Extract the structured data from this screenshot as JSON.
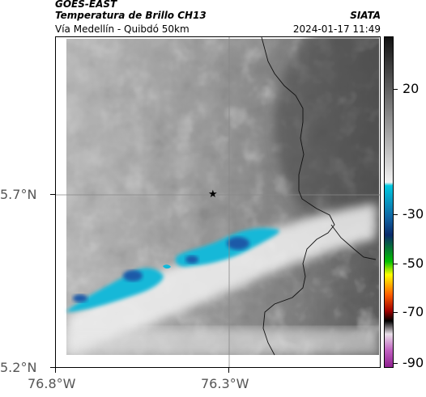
{
  "header": {
    "satellite": "GOES-EAST",
    "product": "Temperatura de Brillo CH13",
    "location": "Vía Medellín - Quibdó 50km",
    "organization": "SIATA",
    "timestamp": "2024-01-17 11:49"
  },
  "axes": {
    "y_ticks": [
      "5.7°N",
      "5.2°N"
    ],
    "x_ticks": [
      "76.8°W",
      "76.3°W"
    ]
  },
  "colorbar": {
    "ticks": [
      "20",
      "-30",
      "-50",
      "-70",
      "-90"
    ],
    "colors": [
      "#111111",
      "#7f7f7f",
      "#f2f2f2",
      "#00c8e0",
      "#1060a0",
      "#0a2a6a",
      "#00c000",
      "#ffff00",
      "#ff6000",
      "#a00000",
      "#000000",
      "#e8e0e8",
      "#c060c0",
      "#902090"
    ]
  },
  "map": {
    "marker_icon": "star-icon",
    "grid": true
  }
}
